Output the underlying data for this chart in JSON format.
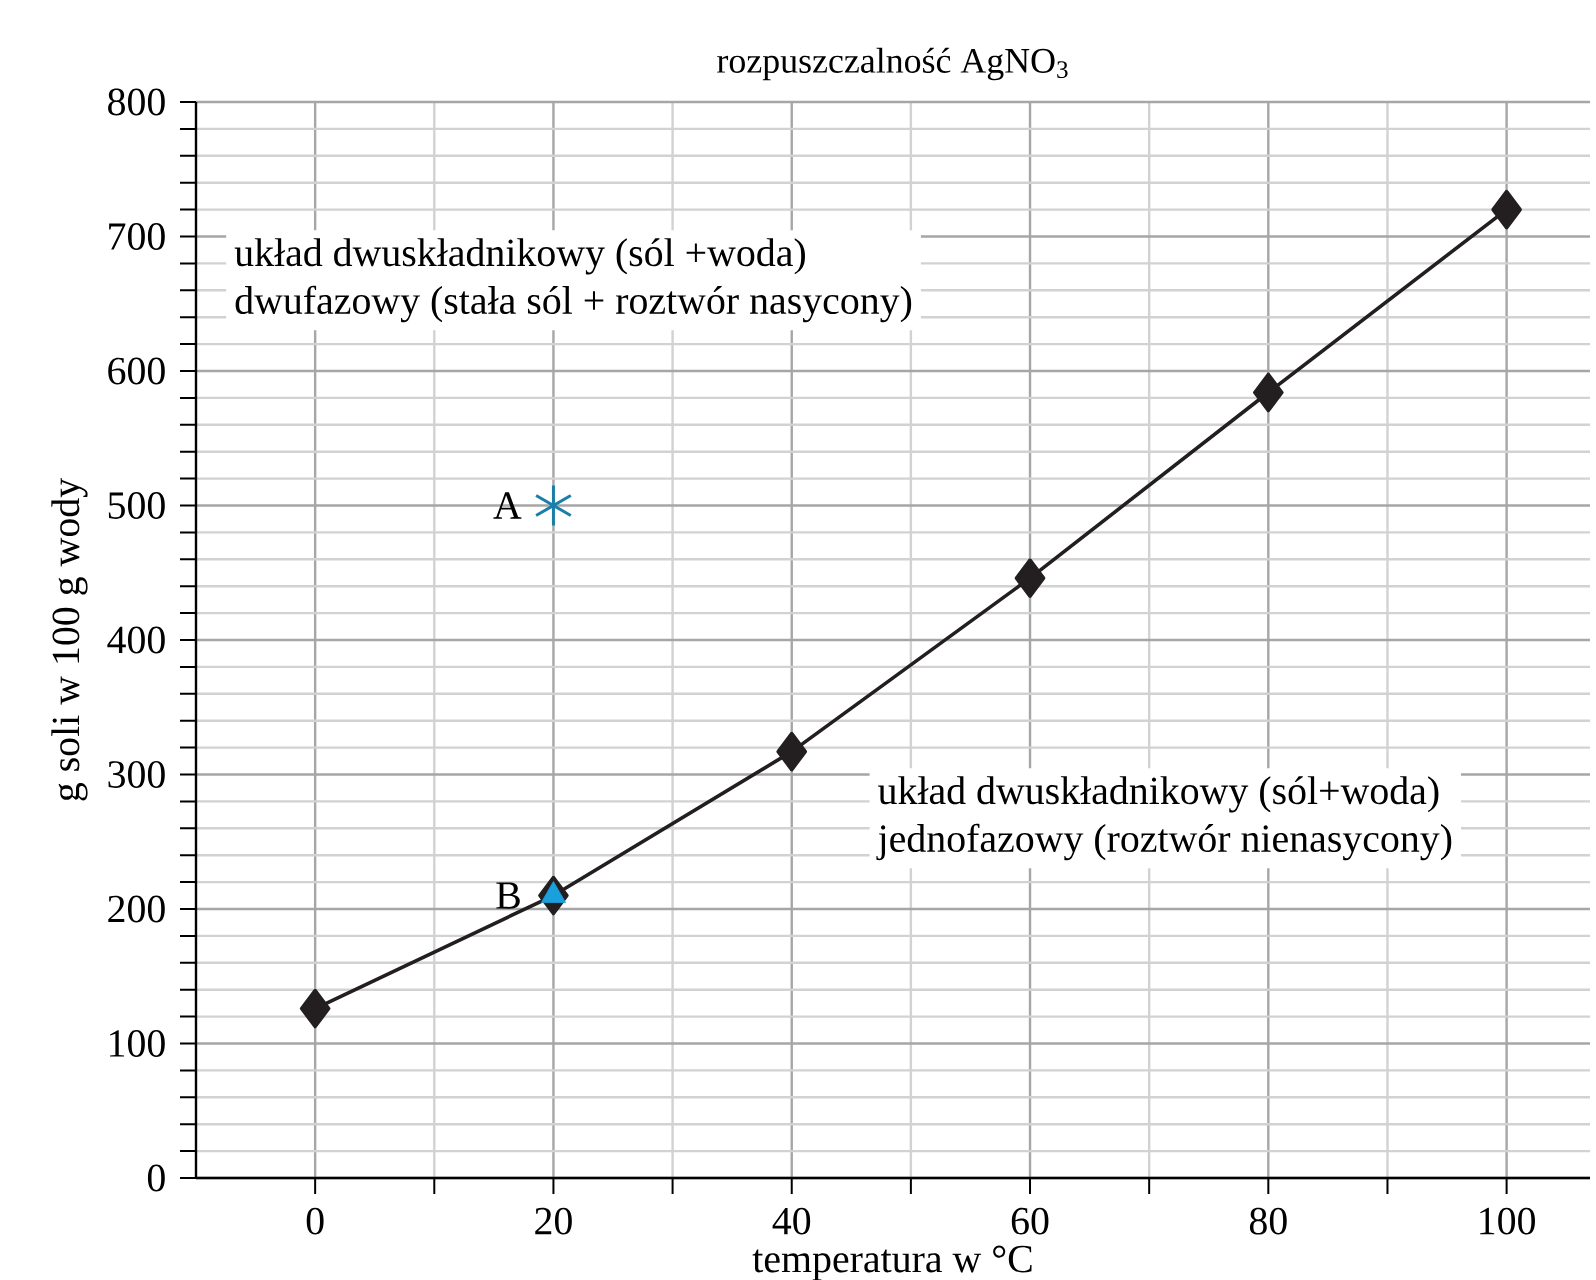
{
  "chart_data": {
    "type": "line",
    "title": "rozpuszczalność AgNO$_{3}$",
    "xlabel": "temperatura w °C",
    "ylabel": "g soli w 100 g wody",
    "xlim": [
      -10,
      107
    ],
    "ylim": [
      0,
      800
    ],
    "xticks": [
      0,
      20,
      40,
      60,
      80,
      100
    ],
    "yticks": [
      0,
      100,
      200,
      300,
      400,
      500,
      600,
      700,
      800
    ],
    "grid": true,
    "series": [
      {
        "x": [
          0,
          20,
          40,
          60,
          80,
          100
        ],
        "values": [
          126,
          210,
          317,
          446,
          584,
          720
        ],
        "color": "#231f20",
        "marker": "diamond",
        "line_style": "solid"
      },
      {
        "type": "scatter",
        "x": [
          20
        ],
        "values": [
          210
        ],
        "color": "#1aa0dc",
        "marker": "triangle"
      },
      {
        "type": "scatter",
        "x": [
          20
        ],
        "values": [
          500
        ],
        "color": "#1a7fa8",
        "marker": "cross"
      }
    ],
    "annotations": [
      {
        "text": "A",
        "x": 20,
        "y": 500
      },
      {
        "text": "B",
        "x": 20,
        "y": 210
      },
      "układ dwuskładnikowy (sól +woda)",
      "dwufazowy (stała sól + roztwór nasycony)",
      "układ dwuskładnikowy (sól+woda)",
      "jednofazowy (roztwór nienasycony)"
    ]
  }
}
